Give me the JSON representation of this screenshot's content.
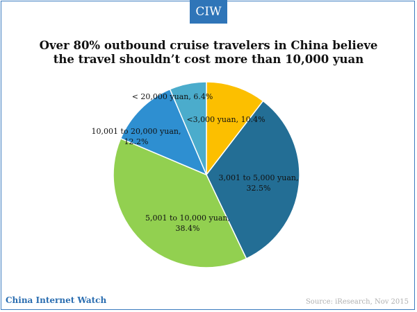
{
  "badge": "CIW",
  "title_lines": [
    "Over 80% outbound cruise travelers in China believe",
    "the travel shouldn’t cost more than 10,000 yuan"
  ],
  "chart_data": {
    "type": "pie",
    "slices": [
      {
        "label": "<3,000 yuan, 10.4%",
        "label_lines": [
          "<3,000 yuan, 10.4%"
        ],
        "category": "<3,000 yuan",
        "value": 10.4,
        "color": "#fcbf00"
      },
      {
        "label": "3,001 to 5,000 yuan, 32.5%",
        "label_lines": [
          "3,001 to 5,000 yuan,",
          "32.5%"
        ],
        "category": "3,001 to 5,000 yuan",
        "value": 32.5,
        "color": "#236e95"
      },
      {
        "label": "5,001 to 10,000 yuan, 38.4%",
        "label_lines": [
          "5,001 to 10,000 yuan,",
          "38.4%"
        ],
        "category": "5,001 to 10,000 yuan",
        "value": 38.4,
        "color": "#92d050"
      },
      {
        "label": "10,001 to 20,000 yuan, 12.2%",
        "label_lines": [
          "10,001 to 20,000 yuan,",
          "12.2%"
        ],
        "category": "10,001 to 20,000 yuan",
        "value": 12.2,
        "color": "#2e8fd1"
      },
      {
        "label": "< 20,000 yuan, 6.4%",
        "label_lines": [
          "< 20,000 yuan, 6.4%"
        ],
        "category": "< 20,000 yuan",
        "value": 6.4,
        "color": "#4baccc"
      }
    ]
  },
  "footer": {
    "brand": "China Internet Watch",
    "source": "Source: iResearch, Nov 2015"
  }
}
